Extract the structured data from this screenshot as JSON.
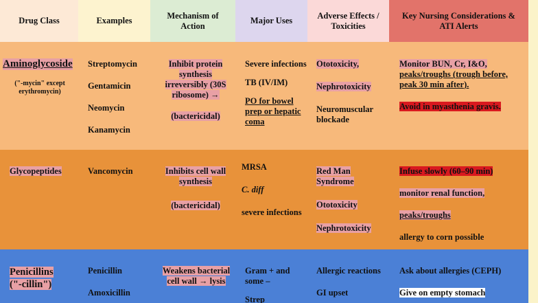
{
  "headers": {
    "drug_class": "Drug Class",
    "examples": "Examples",
    "mechanism": "Mechanism of Action",
    "major_uses": "Major Uses",
    "adverse": "Adverse Effects / Toxicities",
    "nursing": "Key Nursing Considerations & ATI Alerts"
  },
  "aminoglycoside": {
    "class": "Aminoglycoside",
    "class_note": "(\"-mycin\" except erythromycin)",
    "examples": [
      "Streptomycin",
      "Gentamicin",
      "Neomycin",
      "Kanamycin"
    ],
    "mechanism": "Inhibit protein synthesis irreversibly (30S ribosome) →",
    "mechanism_type": "(bactericidal)",
    "uses": [
      "Severe infections",
      "TB (IV/IM)",
      "PO for bowel prep or hepatic coma"
    ],
    "adverse": [
      "Ototoxicity,",
      "Nephrotoxicity",
      "Neuromuscular blockade"
    ],
    "nursing_1_a": "Monitor BUN, Cr, I&O,",
    "nursing_1_b": "peaks/troughs (",
    "nursing_1_c": "trough before, peak 30 min after",
    "nursing_1_d": ").",
    "nursing_2": "Avoid in myasthenia gravis."
  },
  "glycopeptides": {
    "class": "Glycopeptides",
    "examples": [
      "Vancomycin"
    ],
    "mechanism": "Inhibits cell wall synthesis",
    "mechanism_type": "(bactericidal)",
    "uses": [
      "MRSA",
      "C. diff",
      "severe infections"
    ],
    "adverse": [
      "Red Man Syndrome",
      "Ototoxicity",
      "Nephrotoxicity"
    ],
    "nursing": [
      "Infuse slowly (60–90 min)",
      "monitor renal function,",
      "peaks/troughs",
      "allergy to corn possible"
    ]
  },
  "penicillins": {
    "class_a": "Penicillins",
    "class_b": "(\"-cillin\")",
    "examples": [
      "Penicillin",
      "Amoxicillin"
    ],
    "mechanism": "Weakens bacterial cell wall → lysis",
    "uses": [
      "Gram + and some –",
      "Strep"
    ],
    "adverse": [
      "Allergic reactions",
      "GI upset"
    ],
    "nursing": [
      "Ask about allergies (CEPH)",
      "Give on empty stomach"
    ]
  },
  "colors": {
    "h_class": "#fde9d6",
    "h_examples": "#fdf3cf",
    "h_mech": "#dcecd3",
    "h_uses": "#ddd6ee",
    "h_adverse": "#fbd9d8",
    "h_nursing": "#e2736a",
    "row1": "#f7b97b",
    "row2": "#e8923a",
    "row3": "#4b80d6"
  }
}
